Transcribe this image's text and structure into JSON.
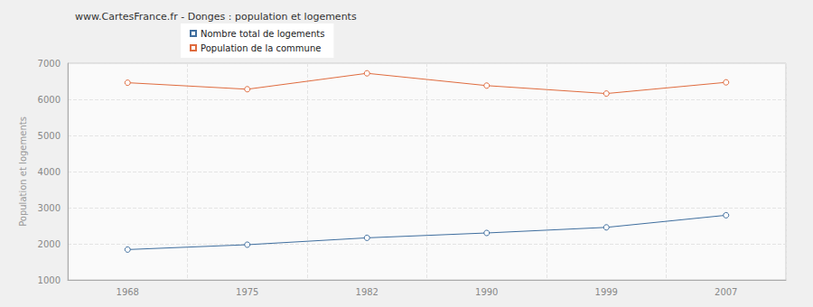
{
  "chart_data": {
    "type": "line",
    "title": "www.CartesFrance.fr - Donges : population et logements",
    "y_label": "Population et logements",
    "categories": [
      "1968",
      "1975",
      "1982",
      "1990",
      "1999",
      "2007"
    ],
    "series": [
      {
        "name": "Nombre total de logements",
        "color": "#3f6e9e",
        "values": [
          1840,
          1975,
          2165,
          2300,
          2455,
          2790
        ]
      },
      {
        "name": "Population de la commune",
        "color": "#df6b3e",
        "values": [
          6460,
          6280,
          6720,
          6380,
          6160,
          6470
        ]
      }
    ],
    "ylim": [
      1000,
      7000
    ],
    "yticks": [
      1000,
      2000,
      3000,
      4000,
      5000,
      6000,
      7000
    ],
    "grid": true,
    "legend": "top-left",
    "marker": "circle"
  }
}
